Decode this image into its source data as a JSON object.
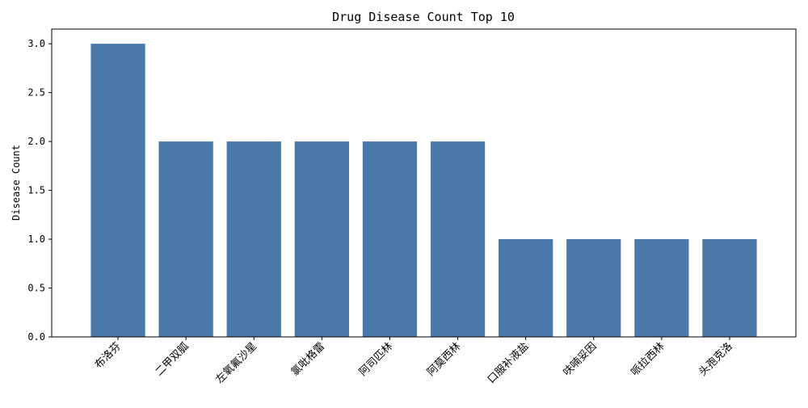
{
  "chart_data": {
    "type": "bar",
    "title": "Drug Disease Count Top 10",
    "xlabel": "",
    "ylabel": "Disease Count",
    "categories": [
      "布洛芬",
      "二甲双胍",
      "左氧氟沙星",
      "氯吡格雷",
      "阿司匹林",
      "阿莫西林",
      "口服补液盐",
      "呋喃妥因",
      "哌拉西林",
      "头孢克洛"
    ],
    "values": [
      3,
      2,
      2,
      2,
      2,
      2,
      1,
      1,
      1,
      1
    ],
    "ylim": [
      0,
      3.15
    ],
    "yticks": [
      "0.0",
      "0.5",
      "1.0",
      "1.5",
      "2.0",
      "2.5",
      "3.0"
    ],
    "grid": false,
    "legend": "none",
    "bar_color": "#4a78a8"
  }
}
